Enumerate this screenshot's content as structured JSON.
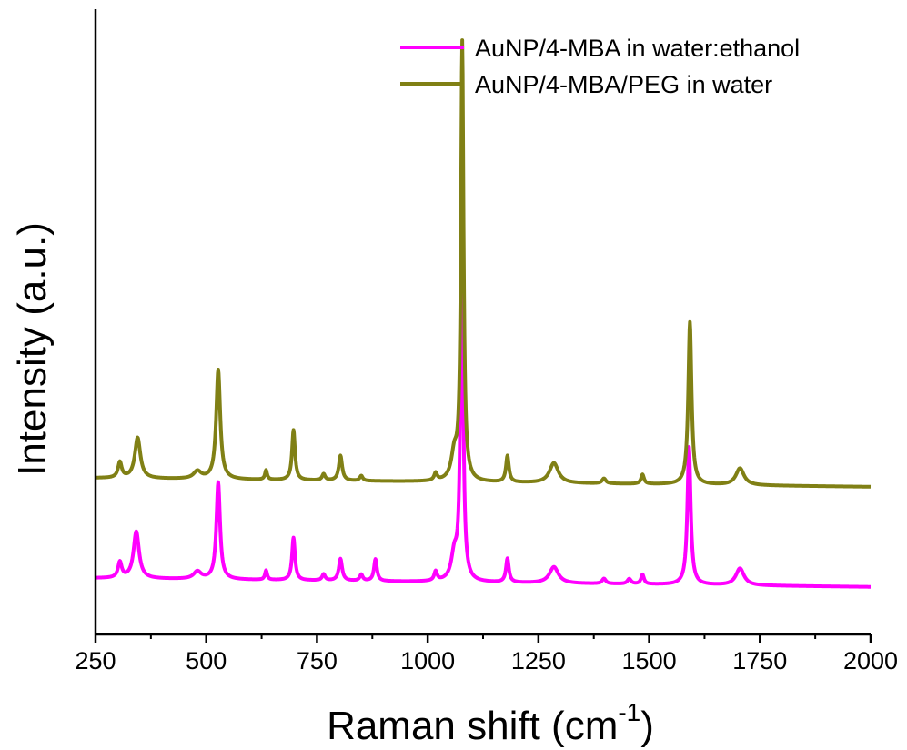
{
  "chart_data": {
    "type": "line",
    "xlabel": "Raman shift (cm",
    "xlabel_superscript": "-1",
    "xlabel_suffix": ")",
    "ylabel": "Intensity (a.u.)",
    "xlim": [
      250,
      2000
    ],
    "ylim": [
      0,
      100
    ],
    "y_ticks_shown": false,
    "x_ticks": [
      250,
      500,
      750,
      1000,
      1250,
      1500,
      1750,
      2000
    ],
    "x_tick_labels": [
      "250",
      "500",
      "750",
      "1000",
      "1250",
      "1500",
      "1750",
      "2000"
    ],
    "grid": false,
    "legend_position": "top-right",
    "series": [
      {
        "name": "AuNP/4-MBA in water:ethanol",
        "color": "#ff00ff",
        "baseline": 9,
        "peaks": [
          {
            "x": 305,
            "height": 2.5,
            "width": 10
          },
          {
            "x": 342,
            "height": 7.5,
            "width": 15
          },
          {
            "x": 480,
            "height": 1.2,
            "width": 20
          },
          {
            "x": 527,
            "height": 15.5,
            "width": 10
          },
          {
            "x": 635,
            "height": 1.5,
            "width": 6
          },
          {
            "x": 697,
            "height": 6.8,
            "width": 8
          },
          {
            "x": 765,
            "height": 1.0,
            "width": 8
          },
          {
            "x": 803,
            "height": 3.5,
            "width": 9
          },
          {
            "x": 850,
            "height": 1.0,
            "width": 8
          },
          {
            "x": 882,
            "height": 3.5,
            "width": 8
          },
          {
            "x": 1018,
            "height": 1.5,
            "width": 8
          },
          {
            "x": 1060,
            "height": 4.0,
            "width": 16
          },
          {
            "x": 1077,
            "height": 58.0,
            "width": 7
          },
          {
            "x": 1180,
            "height": 3.8,
            "width": 8
          },
          {
            "x": 1285,
            "height": 2.6,
            "width": 24
          },
          {
            "x": 1398,
            "height": 0.8,
            "width": 10
          },
          {
            "x": 1455,
            "height": 0.8,
            "width": 10
          },
          {
            "x": 1485,
            "height": 1.5,
            "width": 8
          },
          {
            "x": 1590,
            "height": 22.0,
            "width": 9
          },
          {
            "x": 1705,
            "height": 2.7,
            "width": 22
          }
        ]
      },
      {
        "name": "AuNP/4-MBA/PEG in water",
        "color": "#808015",
        "baseline": 25,
        "peaks": [
          {
            "x": 305,
            "height": 2.5,
            "width": 10
          },
          {
            "x": 345,
            "height": 6.5,
            "width": 15
          },
          {
            "x": 480,
            "height": 1.2,
            "width": 20
          },
          {
            "x": 527,
            "height": 17.5,
            "width": 11
          },
          {
            "x": 635,
            "height": 1.5,
            "width": 6
          },
          {
            "x": 697,
            "height": 8.0,
            "width": 8
          },
          {
            "x": 765,
            "height": 1.0,
            "width": 8
          },
          {
            "x": 803,
            "height": 4.0,
            "width": 9
          },
          {
            "x": 850,
            "height": 0.8,
            "width": 8
          },
          {
            "x": 1018,
            "height": 1.2,
            "width": 8
          },
          {
            "x": 1060,
            "height": 4.0,
            "width": 16
          },
          {
            "x": 1078,
            "height": 70.0,
            "width": 7
          },
          {
            "x": 1180,
            "height": 4.2,
            "width": 8
          },
          {
            "x": 1285,
            "height": 3.2,
            "width": 24
          },
          {
            "x": 1398,
            "height": 0.8,
            "width": 10
          },
          {
            "x": 1485,
            "height": 1.5,
            "width": 8
          },
          {
            "x": 1592,
            "height": 26.0,
            "width": 9
          },
          {
            "x": 1705,
            "height": 2.7,
            "width": 22
          }
        ]
      }
    ]
  }
}
